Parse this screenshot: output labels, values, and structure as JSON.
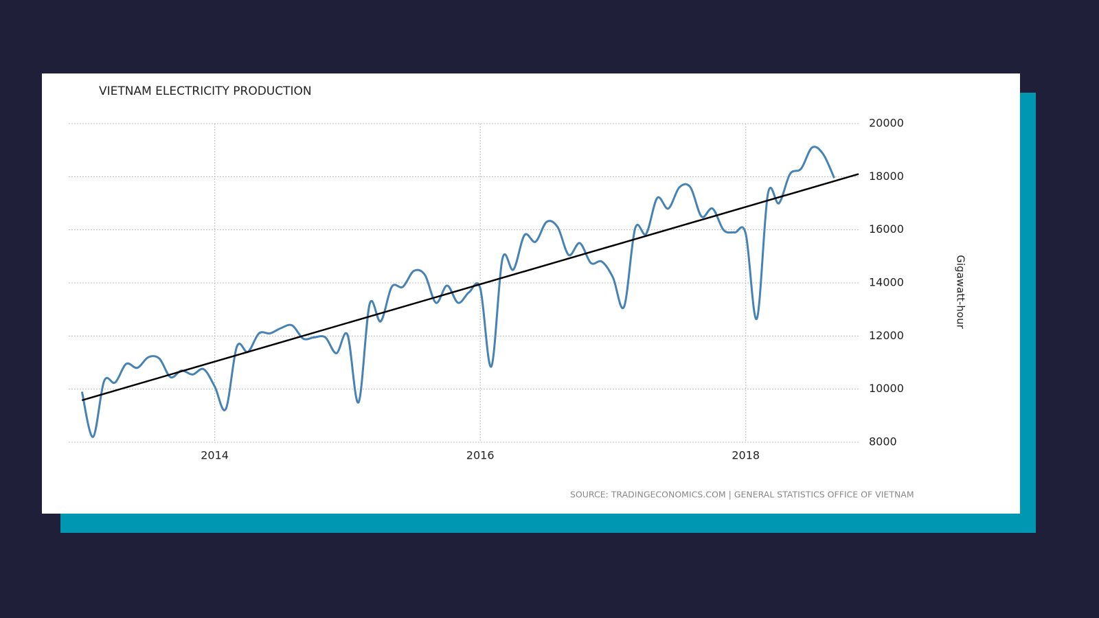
{
  "chart_data": {
    "type": "line",
    "title": "VIETNAM ELECTRICITY PRODUCTION",
    "y_label": "Gigawatt-hour",
    "source": "SOURCE: TRADINGECONOMICS.COM | GENERAL STATISTICS OFFICE OF VIETNAM",
    "x": [
      2013,
      2013.0833,
      2013.1667,
      2013.25,
      2013.3333,
      2013.4167,
      2013.5,
      2013.5833,
      2013.6667,
      2013.75,
      2013.8333,
      2013.9167,
      2014,
      2014.0833,
      2014.1667,
      2014.25,
      2014.3333,
      2014.4167,
      2014.5,
      2014.5833,
      2014.6667,
      2014.75,
      2014.8333,
      2014.9167,
      2015,
      2015.0833,
      2015.1667,
      2015.25,
      2015.3333,
      2015.4167,
      2015.5,
      2015.5833,
      2015.6667,
      2015.75,
      2015.8333,
      2015.9167,
      2016,
      2016.0833,
      2016.1667,
      2016.25,
      2016.3333,
      2016.4167,
      2016.5,
      2016.5833,
      2016.6667,
      2016.75,
      2016.8333,
      2016.9167,
      2017,
      2017.0833,
      2017.1667,
      2017.25,
      2017.3333,
      2017.4167,
      2017.5,
      2017.5833,
      2017.6667,
      2017.75,
      2017.8333,
      2017.9167,
      2018,
      2018.0833,
      2018.1667,
      2018.25,
      2018.3333,
      2018.4167,
      2018.5,
      2018.5833,
      2018.6667
    ],
    "series": [
      {
        "color": "#4682b4",
        "values": [
          9900,
          8200,
          10300,
          10250,
          10950,
          10800,
          11200,
          11150,
          10450,
          10700,
          10550,
          10750,
          10100,
          9250,
          11600,
          11400,
          12100,
          12100,
          12300,
          12400,
          11900,
          11950,
          11950,
          11350,
          12050,
          9500,
          13200,
          12550,
          13850,
          13850,
          14450,
          14300,
          13250,
          13900,
          13250,
          13650,
          13800,
          10850,
          14900,
          14500,
          15800,
          15550,
          16300,
          16100,
          15050,
          15500,
          14750,
          14800,
          14200,
          13100,
          16050,
          15850,
          17200,
          16800,
          17600,
          17600,
          16500,
          16800,
          15990,
          15900,
          15850,
          12650,
          17350,
          17000,
          18100,
          18300,
          19100,
          18850,
          17950
        ]
      }
    ],
    "trend": {
      "color": "#000000",
      "x": [
        2013,
        2018.85
      ],
      "values": [
        9580,
        18100
      ]
    },
    "xlim": [
      2012.9,
      2018.85
    ],
    "xticks": [
      2014,
      2016,
      2018
    ],
    "ylim": [
      8000,
      20000
    ],
    "yticks": [
      8000,
      10000,
      12000,
      14000,
      16000,
      18000,
      20000
    ],
    "grid": true
  }
}
